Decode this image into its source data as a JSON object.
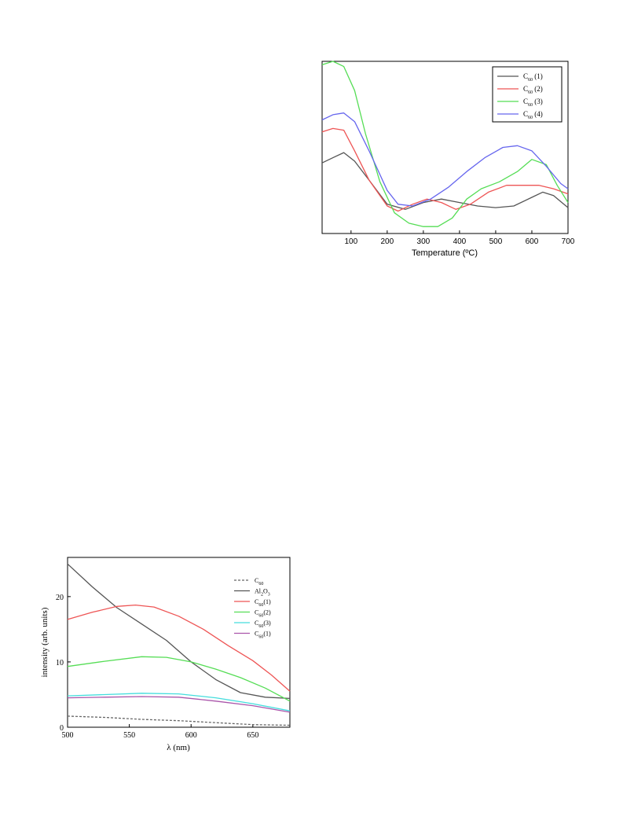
{
  "chart_data": [
    {
      "type": "line",
      "title": "",
      "xlabel": "Temperature (ºC)",
      "ylabel": "",
      "xlim": [
        20,
        700
      ],
      "ylim": [
        0,
        1
      ],
      "xticks": [
        "100",
        "200",
        "300",
        "400",
        "500",
        "600",
        "700"
      ],
      "legend": "top-right",
      "series": [
        {
          "name_base": "C",
          "name_sub": "60",
          "name_suffix": " (1)",
          "color": "#555555",
          "x": [
            20,
            50,
            80,
            110,
            150,
            200,
            250,
            300,
            350,
            400,
            450,
            500,
            550,
            600,
            630,
            660,
            700
          ],
          "y": [
            0.41,
            0.44,
            0.47,
            0.42,
            0.31,
            0.17,
            0.14,
            0.18,
            0.2,
            0.18,
            0.16,
            0.15,
            0.16,
            0.21,
            0.24,
            0.22,
            0.15
          ]
        },
        {
          "name_base": "C",
          "name_sub": "60",
          "name_suffix": " (2)",
          "color": "#ee5555",
          "x": [
            20,
            50,
            80,
            110,
            150,
            200,
            230,
            270,
            310,
            350,
            390,
            430,
            480,
            530,
            570,
            620,
            660,
            700
          ],
          "y": [
            0.59,
            0.61,
            0.6,
            0.48,
            0.31,
            0.16,
            0.13,
            0.17,
            0.2,
            0.18,
            0.14,
            0.17,
            0.24,
            0.28,
            0.28,
            0.28,
            0.26,
            0.23
          ]
        },
        {
          "name_base": "C",
          "name_sub": "60",
          "name_suffix": " (3)",
          "color": "#55dd55",
          "x": [
            20,
            50,
            80,
            110,
            140,
            180,
            220,
            260,
            300,
            340,
            380,
            420,
            460,
            510,
            560,
            600,
            640,
            670,
            700
          ],
          "y": [
            0.98,
            1.0,
            0.97,
            0.83,
            0.58,
            0.3,
            0.12,
            0.06,
            0.04,
            0.04,
            0.09,
            0.2,
            0.26,
            0.3,
            0.36,
            0.43,
            0.4,
            0.28,
            0.18
          ]
        },
        {
          "name_base": "C",
          "name_sub": "60",
          "name_suffix": " (4)",
          "color": "#6666ee",
          "x": [
            20,
            50,
            80,
            110,
            150,
            200,
            230,
            270,
            320,
            370,
            420,
            470,
            520,
            560,
            600,
            640,
            680,
            700
          ],
          "y": [
            0.66,
            0.69,
            0.7,
            0.65,
            0.48,
            0.25,
            0.17,
            0.16,
            0.2,
            0.27,
            0.36,
            0.44,
            0.5,
            0.51,
            0.48,
            0.39,
            0.29,
            0.26
          ]
        }
      ]
    },
    {
      "type": "line",
      "title": "",
      "xlabel": "λ (nm)",
      "ylabel": "intensity (arb. units)",
      "xlim": [
        500,
        680
      ],
      "ylim": [
        0,
        26
      ],
      "xticks": [
        "500",
        "550",
        "600",
        "650"
      ],
      "yticks": [
        "0",
        "10",
        "20"
      ],
      "legend": "top-right",
      "series": [
        {
          "name_base": "C",
          "name_sub": "60",
          "name_suffix": "",
          "color": "#666666",
          "dash": true,
          "x": [
            500,
            530,
            560,
            590,
            620,
            650,
            680
          ],
          "y": [
            1.7,
            1.5,
            1.2,
            1.0,
            0.7,
            0.4,
            0.3
          ]
        },
        {
          "name_base": "Al",
          "name_sub": "2",
          "name_suffix": "O",
          "name_sub2": "3",
          "color": "#555555",
          "x": [
            500,
            520,
            540,
            560,
            580,
            600,
            620,
            640,
            660,
            680
          ],
          "y": [
            25.0,
            21.5,
            18.3,
            15.8,
            13.3,
            10.0,
            7.3,
            5.3,
            4.6,
            4.4
          ]
        },
        {
          "name_base": "C",
          "name_sub": "60",
          "name_suffix": "(1)",
          "color": "#ee5555",
          "x": [
            500,
            520,
            540,
            555,
            570,
            590,
            610,
            630,
            650,
            665,
            680
          ],
          "y": [
            16.5,
            17.6,
            18.5,
            18.7,
            18.4,
            17.0,
            15.0,
            12.5,
            10.2,
            8.0,
            5.5
          ]
        },
        {
          "name_base": "C",
          "name_sub": "60",
          "name_suffix": "(2)",
          "color": "#55dd55",
          "x": [
            500,
            530,
            560,
            580,
            600,
            620,
            640,
            660,
            680
          ],
          "y": [
            9.3,
            10.1,
            10.8,
            10.7,
            10.0,
            8.9,
            7.6,
            6.0,
            4.0
          ]
        },
        {
          "name_base": "C",
          "name_sub": "60",
          "name_suffix": "(3)",
          "color": "#44dddd",
          "x": [
            500,
            530,
            560,
            590,
            620,
            650,
            680
          ],
          "y": [
            4.8,
            5.0,
            5.2,
            5.1,
            4.5,
            3.6,
            2.5
          ]
        },
        {
          "name_base": "C",
          "name_sub": "60",
          "name_suffix": "(1)",
          "color": "#aa55aa",
          "x": [
            500,
            530,
            560,
            590,
            620,
            650,
            680
          ],
          "y": [
            4.5,
            4.6,
            4.7,
            4.6,
            4.0,
            3.3,
            2.3
          ]
        }
      ]
    }
  ]
}
